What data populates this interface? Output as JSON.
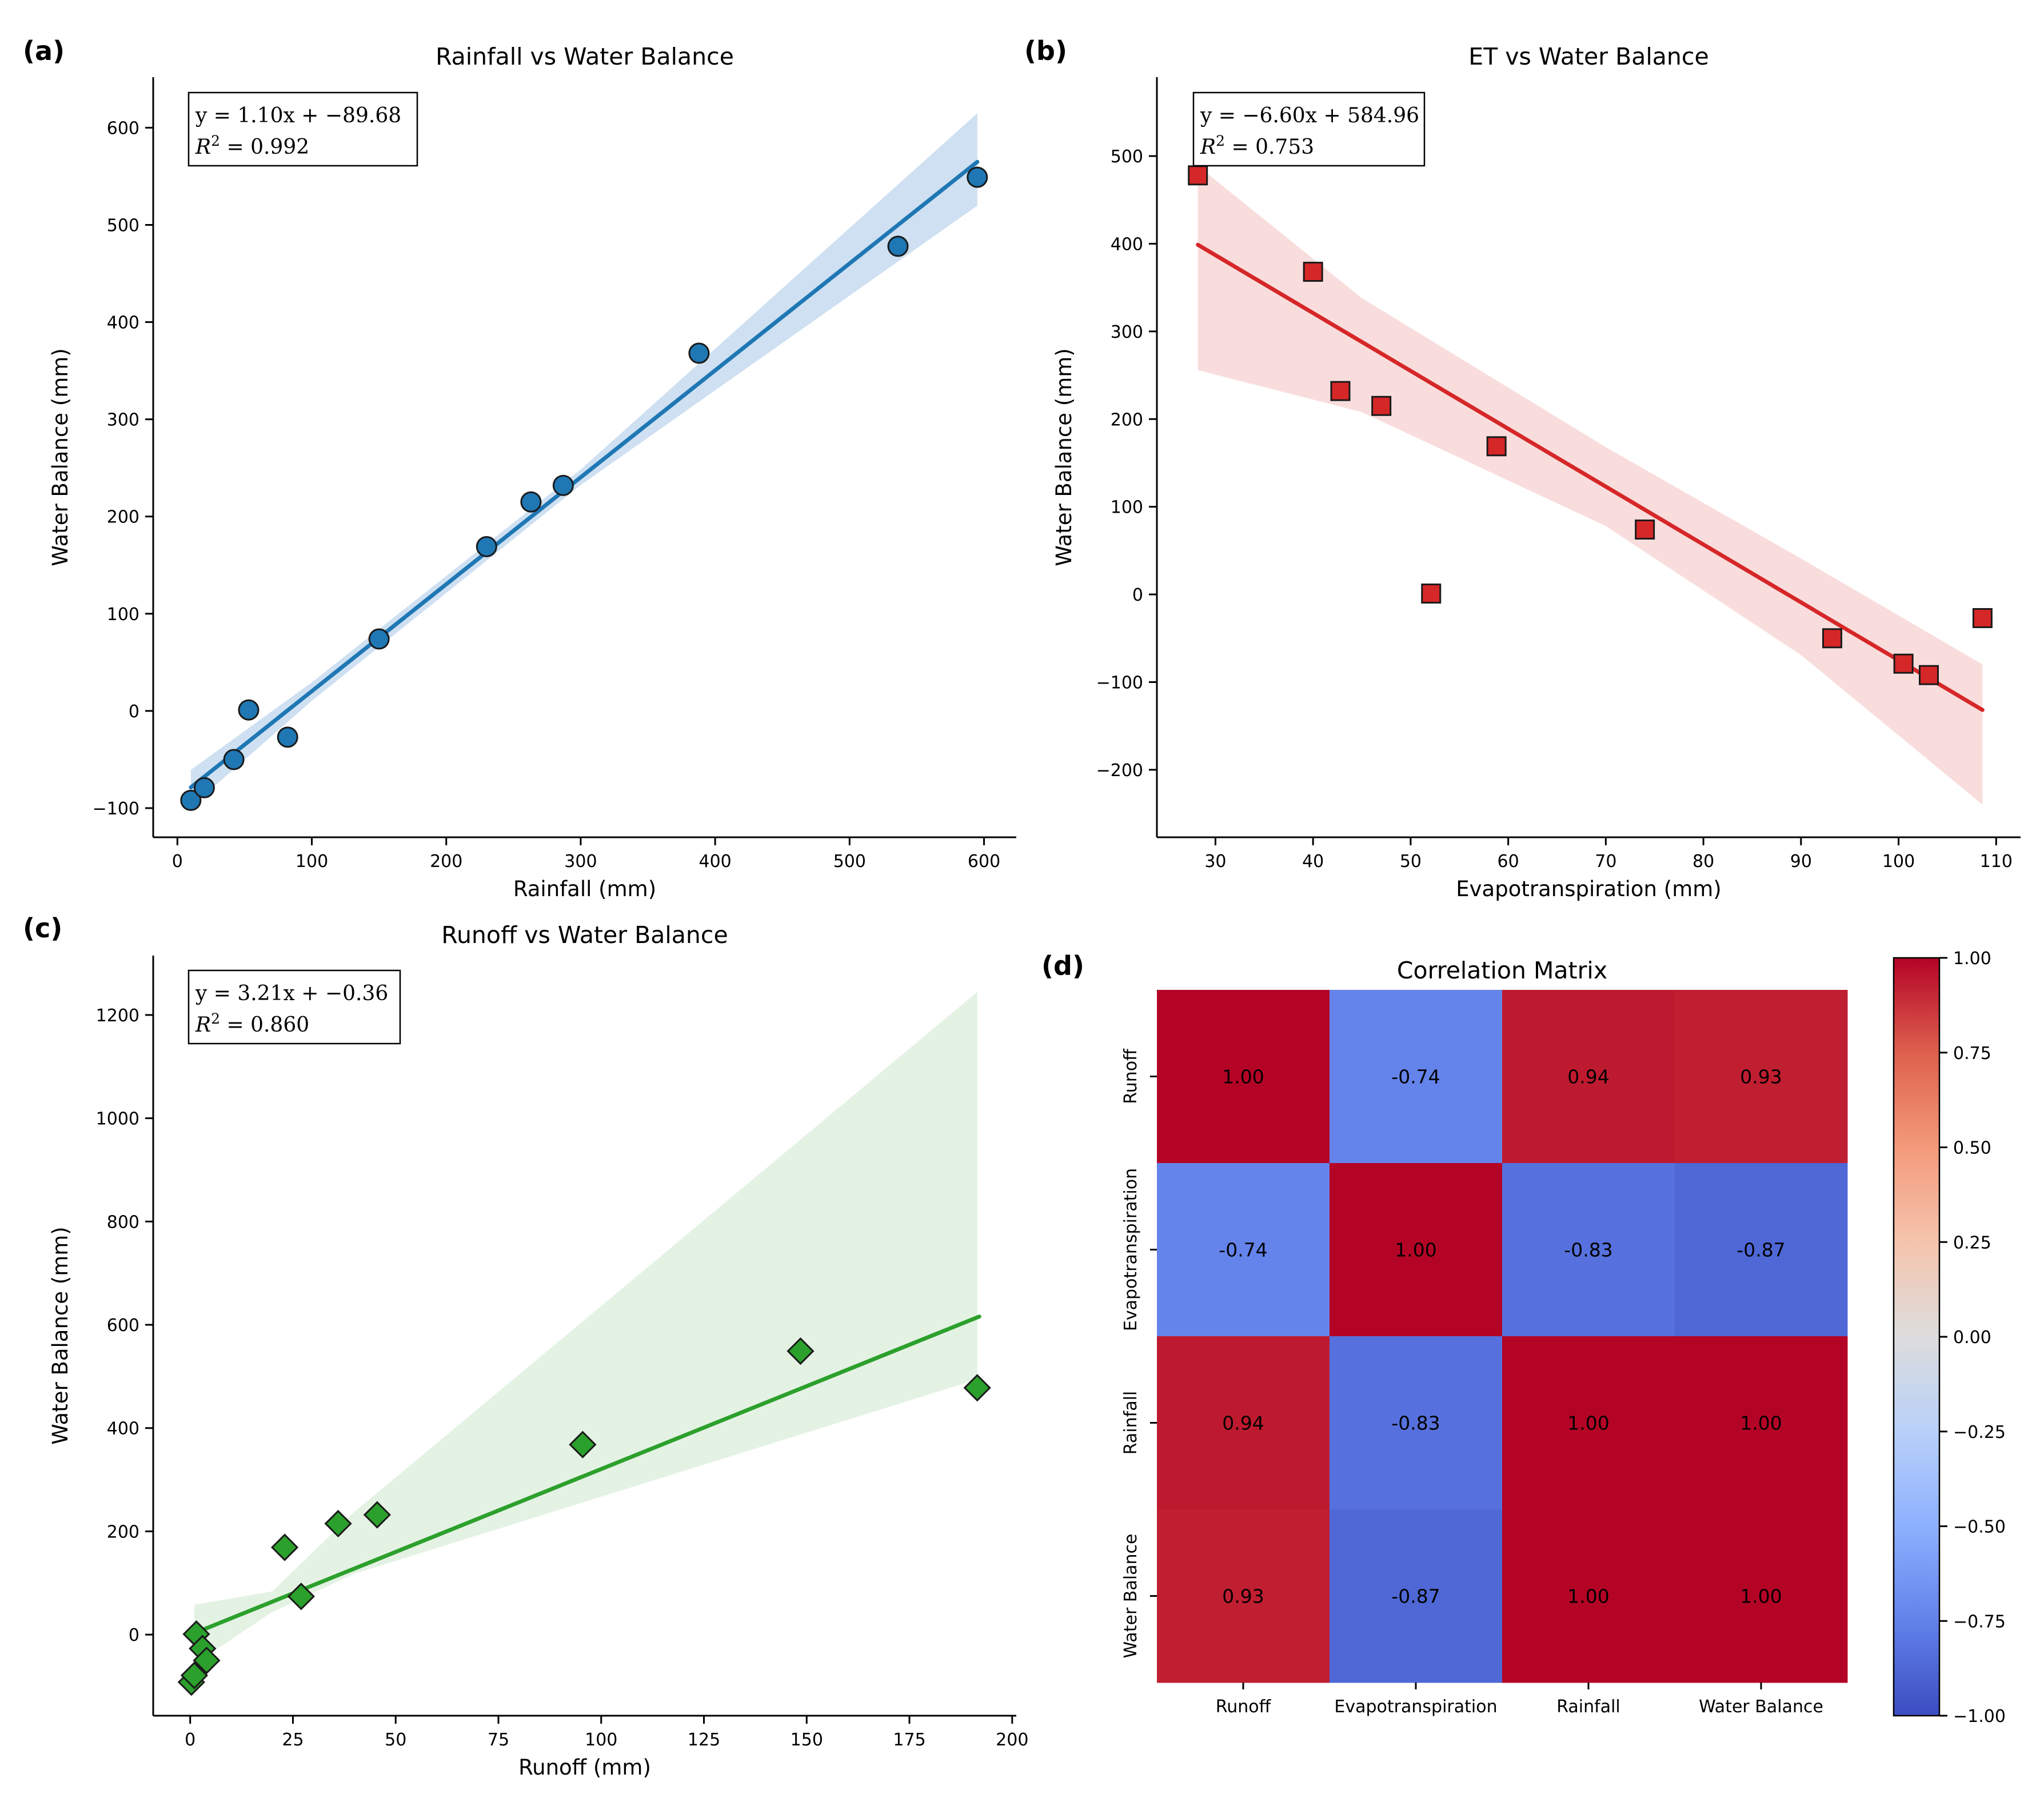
{
  "figure": {
    "panel_labels": [
      "(a)",
      "(b)",
      "(c)",
      "(d)"
    ]
  },
  "chart_data": [
    {
      "type": "scatter",
      "panel": "(a)",
      "title": "Rainfall vs Water Balance",
      "xlabel": "Rainfall (mm)",
      "ylabel": "Water Balance (mm)",
      "xlim": [
        -18,
        624
      ],
      "ylim": [
        -130,
        652
      ],
      "xticks": [
        0,
        100,
        200,
        300,
        400,
        500,
        600
      ],
      "yticks": [
        -100,
        0,
        100,
        200,
        300,
        400,
        500,
        600
      ],
      "fit": {
        "slope": 1.1,
        "intercept": -89.68,
        "x_range": [
          10,
          595
        ],
        "ci": [
          [
            10,
            -20,
            18
          ],
          [
            100,
            -10,
            9
          ],
          [
            300,
            -8,
            8
          ],
          [
            595,
            -45,
            50
          ]
        ]
      },
      "annotation": {
        "eq_line": "y = 1.10x + −89.68",
        "r2_line": "R² = 0.992",
        "r2_value": "0.992"
      },
      "marker": "circle",
      "color": "#1f77b4",
      "band_color": "#c6dbef",
      "points": {
        "x": [
          10,
          20,
          42,
          53,
          82,
          150,
          230,
          263,
          287,
          388,
          536,
          595
        ],
        "y": [
          -92,
          -79,
          -50,
          1,
          -27,
          74,
          169,
          215,
          232,
          368,
          478,
          549
        ]
      }
    },
    {
      "type": "scatter",
      "panel": "(b)",
      "title": "ET vs Water Balance",
      "xlabel": "Evapotranspiration (mm)",
      "ylabel": "Water Balance (mm)",
      "xlim": [
        24,
        112.5
      ],
      "ylim": [
        -277,
        590
      ],
      "xticks": [
        30,
        40,
        50,
        60,
        70,
        80,
        90,
        100,
        110
      ],
      "yticks": [
        -200,
        -100,
        0,
        100,
        200,
        300,
        400,
        500
      ],
      "fit": {
        "slope": -6.6,
        "intercept": 584.96,
        "x_range": [
          28.2,
          108.6
        ],
        "ci": [
          [
            28.2,
            -143,
            90
          ],
          [
            45,
            -80,
            50
          ],
          [
            70,
            -45,
            45
          ],
          [
            90,
            -60,
            50
          ],
          [
            108.6,
            -108,
            52
          ]
        ]
      },
      "annotation": {
        "eq_line": "y = −6.60x + 584.96",
        "r2_line": "R² = 0.753",
        "r2_value": "0.753"
      },
      "marker": "square",
      "color": "#d62728",
      "band_color": "#f8d7d7",
      "points": {
        "x": [
          28.2,
          40,
          42.8,
          47,
          52.1,
          58.8,
          74,
          93.2,
          100.5,
          103.1,
          108.6
        ],
        "y": [
          478,
          368,
          232,
          215,
          1,
          169,
          74,
          -50,
          -79,
          -92,
          -27
        ]
      }
    },
    {
      "type": "scatter",
      "panel": "(c)",
      "title": "Runoff vs Water Balance",
      "xlabel": "Runoff (mm)",
      "ylabel": "Water Balance (mm)",
      "xlim": [
        -9,
        201
      ],
      "ylim": [
        -157,
        1315
      ],
      "xticks": [
        0,
        25,
        50,
        75,
        100,
        125,
        150,
        175,
        200
      ],
      "yticks": [
        0,
        200,
        400,
        600,
        800,
        1000,
        1200
      ],
      "fit": {
        "slope": 3.21,
        "intercept": -0.36,
        "x_range": [
          1,
          192
        ],
        "ci": [
          [
            1,
            -60,
            55
          ],
          [
            20,
            -20,
            20
          ],
          [
            40,
            -10,
            110
          ],
          [
            191.5,
            -120,
            630
          ]
        ]
      },
      "annotation": {
        "eq_line": "y = 3.21x + −0.36",
        "r2_line": "R² = 0.860",
        "r2_value": "0.860"
      },
      "marker": "diamond",
      "color": "#2ca02c",
      "band_color": "#dff0df",
      "points": {
        "x": [
          0.3,
          1,
          1.5,
          3,
          4,
          23,
          27,
          36,
          45.5,
          95.5,
          148.5,
          191.5
        ],
        "y": [
          -92,
          -79,
          1,
          -27,
          -50,
          169,
          74,
          215,
          232,
          368,
          549,
          478
        ]
      }
    },
    {
      "type": "heatmap",
      "panel": "(d)",
      "title": "Correlation Matrix",
      "labels": [
        "Runoff",
        "Evapotranspiration",
        "Rainfall",
        "Water Balance"
      ],
      "matrix": [
        [
          1.0,
          -0.74,
          0.94,
          0.93
        ],
        [
          -0.74,
          1.0,
          -0.83,
          -0.87
        ],
        [
          0.94,
          -0.83,
          1.0,
          1.0
        ],
        [
          0.93,
          -0.87,
          1.0,
          1.0
        ]
      ],
      "cell_labels": [
        [
          "1.00",
          "-0.74",
          "0.94",
          "0.93"
        ],
        [
          "-0.74",
          "1.00",
          "-0.83",
          "-0.87"
        ],
        [
          "0.94",
          "-0.83",
          "1.00",
          "1.00"
        ],
        [
          "0.93",
          "-0.87",
          "1.00",
          "1.00"
        ]
      ],
      "colorbar": {
        "min": -1.0,
        "max": 1.0,
        "colormap": "coolwarm",
        "ticks": [
          "1.00",
          "0.75",
          "0.50",
          "0.25",
          "0.00",
          "−0.25",
          "−0.50",
          "−0.75",
          "−1.00"
        ]
      }
    }
  ]
}
